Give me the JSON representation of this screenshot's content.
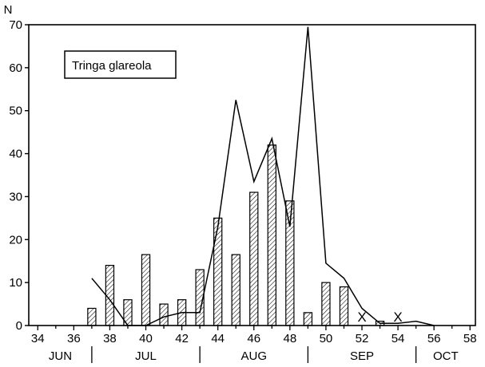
{
  "chart_data": {
    "type": "bar",
    "ylabel": "N",
    "ylim": [
      0,
      70
    ],
    "yticks": [
      0,
      10,
      20,
      30,
      40,
      50,
      60,
      70
    ],
    "xlim": [
      33.5,
      58.3
    ],
    "xticks": [
      34,
      36,
      38,
      40,
      42,
      44,
      46,
      48,
      50,
      52,
      54,
      56,
      58
    ],
    "legend": "Tringa glareola",
    "legend_position": "top-left",
    "grid": false,
    "months": [
      {
        "label": "JUN",
        "from": 33.5,
        "to": 37
      },
      {
        "label": "JUL",
        "from": 37,
        "to": 43
      },
      {
        "label": "AUG",
        "from": 43,
        "to": 49
      },
      {
        "label": "SEP",
        "from": 49,
        "to": 55
      },
      {
        "label": "OCT",
        "from": 55,
        "to": 58.3
      }
    ],
    "bars": {
      "style": "hatched",
      "x": [
        37,
        38,
        39,
        40,
        41,
        42,
        43,
        44,
        45,
        46,
        47,
        48,
        49,
        50,
        51,
        53
      ],
      "values": [
        4,
        14,
        6,
        16.5,
        5,
        6,
        13,
        25,
        16.5,
        31,
        42,
        29,
        3,
        10,
        9,
        1
      ]
    },
    "line": {
      "x": [
        37,
        38,
        39,
        40,
        41,
        42,
        43,
        44,
        45,
        46,
        47,
        48,
        49,
        50,
        51,
        52,
        53,
        54,
        55,
        56
      ],
      "values": [
        11,
        6,
        0,
        0,
        2,
        3,
        3,
        23,
        52.5,
        33.5,
        43.5,
        23,
        69.5,
        14.5,
        11,
        4,
        0.5,
        0.5,
        1,
        0
      ]
    },
    "markers": [
      {
        "x": 52,
        "value": 0,
        "label": "X"
      },
      {
        "x": 54,
        "value": 0,
        "label": "X"
      }
    ]
  }
}
